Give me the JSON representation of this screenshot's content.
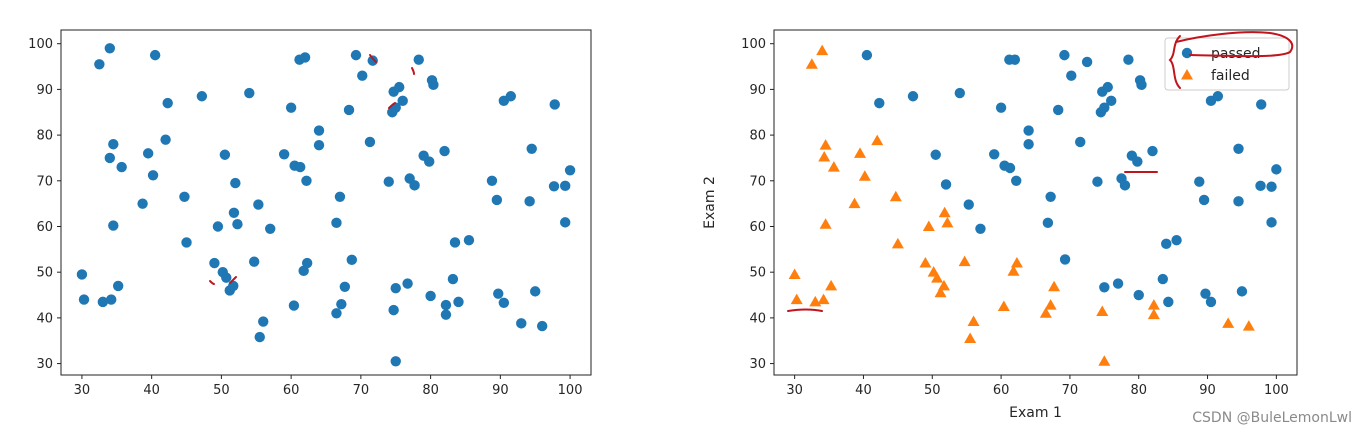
{
  "chart_data": [
    {
      "type": "scatter",
      "xlim": [
        27,
        103
      ],
      "ylim": [
        27.5,
        103
      ],
      "xticks": [
        30,
        40,
        50,
        60,
        70,
        80,
        90,
        100
      ],
      "yticks": [
        30,
        40,
        50,
        60,
        70,
        80,
        90,
        100
      ],
      "xlabel": "",
      "ylabel": "",
      "legend": null,
      "series": [
        {
          "color": "#1f77b4",
          "marker": "circle",
          "points": [
            [
              30,
              49.5
            ],
            [
              30.3,
              44
            ],
            [
              32.5,
              95.5
            ],
            [
              33,
              43.5
            ],
            [
              34,
              99
            ],
            [
              34,
              75
            ],
            [
              34.2,
              44
            ],
            [
              34.5,
              78
            ],
            [
              34.5,
              60.2
            ],
            [
              35.2,
              47
            ],
            [
              35.7,
              73
            ],
            [
              38.7,
              65
            ],
            [
              39.5,
              76
            ],
            [
              40.2,
              71.2
            ],
            [
              40.5,
              97.5
            ],
            [
              42,
              79
            ],
            [
              42.3,
              87
            ],
            [
              44.7,
              66.5
            ],
            [
              45,
              56.5
            ],
            [
              47.2,
              88.5
            ],
            [
              49,
              52
            ],
            [
              49.5,
              60
            ],
            [
              50.2,
              50
            ],
            [
              50.5,
              75.7
            ],
            [
              50.7,
              48.8
            ],
            [
              51.2,
              46
            ],
            [
              51.7,
              47
            ],
            [
              51.8,
              63
            ],
            [
              52,
              69.5
            ],
            [
              52.3,
              60.5
            ],
            [
              54,
              89.2
            ],
            [
              54.7,
              52.3
            ],
            [
              55.3,
              64.8
            ],
            [
              55.5,
              35.8
            ],
            [
              56,
              39.2
            ],
            [
              57,
              59.5
            ],
            [
              59,
              75.8
            ],
            [
              60,
              86
            ],
            [
              60.4,
              42.7
            ],
            [
              60.5,
              73.3
            ],
            [
              61.2,
              96.5
            ],
            [
              61.3,
              73
            ],
            [
              61.8,
              50.3
            ],
            [
              62,
              97
            ],
            [
              62.2,
              70
            ],
            [
              62.3,
              52
            ],
            [
              64,
              77.8
            ],
            [
              64,
              81
            ],
            [
              66.5,
              60.8
            ],
            [
              66.5,
              41
            ],
            [
              67,
              66.5
            ],
            [
              67.2,
              43
            ],
            [
              67.7,
              46.8
            ],
            [
              68.3,
              85.5
            ],
            [
              68.7,
              52.7
            ],
            [
              69.3,
              97.5
            ],
            [
              70.2,
              93
            ],
            [
              71.3,
              78.5
            ],
            [
              71.7,
              96.3
            ],
            [
              74,
              69.8
            ],
            [
              74.5,
              85
            ],
            [
              74.7,
              41.7
            ],
            [
              74.7,
              89.5
            ],
            [
              75,
              46.5
            ],
            [
              75,
              86
            ],
            [
              75,
              30.5
            ],
            [
              75.5,
              90.5
            ],
            [
              76,
              87.5
            ],
            [
              76.7,
              47.5
            ],
            [
              77,
              70.5
            ],
            [
              77.7,
              69
            ],
            [
              78.3,
              96.5
            ],
            [
              79,
              75.5
            ],
            [
              79.8,
              74.2
            ],
            [
              80,
              44.8
            ],
            [
              80.2,
              92
            ],
            [
              80.4,
              91
            ],
            [
              82,
              76.5
            ],
            [
              82.2,
              42.8
            ],
            [
              82.2,
              40.7
            ],
            [
              83.2,
              48.5
            ],
            [
              83.5,
              56.5
            ],
            [
              84,
              43.5
            ],
            [
              85.5,
              57
            ],
            [
              88.8,
              70
            ],
            [
              89.5,
              65.8
            ],
            [
              89.7,
              45.3
            ],
            [
              90.5,
              87.5
            ],
            [
              90.5,
              43.3
            ],
            [
              91.5,
              88.5
            ],
            [
              93,
              38.8
            ],
            [
              94.2,
              65.5
            ],
            [
              94.5,
              77
            ],
            [
              95,
              45.8
            ],
            [
              96,
              38.2
            ],
            [
              97.7,
              68.8
            ],
            [
              97.8,
              86.7
            ],
            [
              99.3,
              68.9
            ],
            [
              99.3,
              60.9
            ],
            [
              100,
              72.3
            ]
          ]
        }
      ]
    },
    {
      "type": "scatter",
      "xlim": [
        27,
        103
      ],
      "ylim": [
        27.5,
        103
      ],
      "xticks": [
        30,
        40,
        50,
        60,
        70,
        80,
        90,
        100
      ],
      "yticks": [
        30,
        40,
        50,
        60,
        70,
        80,
        90,
        100
      ],
      "xlabel": "Exam 1",
      "ylabel": "Exam 2",
      "legend": "top-right",
      "series": [
        {
          "name": "passed",
          "color": "#1f77b4",
          "marker": "circle",
          "points": [
            [
              40.5,
              97.5
            ],
            [
              42.3,
              87
            ],
            [
              47.2,
              88.5
            ],
            [
              50.5,
              75.7
            ],
            [
              52,
              69.2
            ],
            [
              54,
              89.2
            ],
            [
              55.3,
              64.8
            ],
            [
              57,
              59.5
            ],
            [
              59,
              75.8
            ],
            [
              60,
              86
            ],
            [
              60.5,
              73.3
            ],
            [
              61.2,
              96.5
            ],
            [
              61.3,
              72.8
            ],
            [
              62,
              96.5
            ],
            [
              62.2,
              70
            ],
            [
              64,
              81
            ],
            [
              64,
              78
            ],
            [
              66.8,
              60.8
            ],
            [
              67.2,
              66.5
            ],
            [
              68.3,
              85.5
            ],
            [
              69.2,
              97.5
            ],
            [
              69.3,
              52.8
            ],
            [
              70.2,
              93
            ],
            [
              71.5,
              78.5
            ],
            [
              72.5,
              96
            ],
            [
              74,
              69.8
            ],
            [
              74.5,
              85
            ],
            [
              74.7,
              89.5
            ],
            [
              75,
              46.7
            ],
            [
              75,
              86
            ],
            [
              75.5,
              90.5
            ],
            [
              76,
              87.5
            ],
            [
              77,
              47.5
            ],
            [
              77.5,
              70.5
            ],
            [
              78,
              69
            ],
            [
              78.5,
              96.5
            ],
            [
              79,
              75.5
            ],
            [
              79.8,
              74.2
            ],
            [
              80,
              45
            ],
            [
              80.2,
              92
            ],
            [
              80.4,
              91
            ],
            [
              82,
              76.5
            ],
            [
              83.5,
              48.5
            ],
            [
              84,
              56.2
            ],
            [
              84.3,
              43.5
            ],
            [
              85.5,
              57
            ],
            [
              88.8,
              69.8
            ],
            [
              89.5,
              65.8
            ],
            [
              89.7,
              45.3
            ],
            [
              90.5,
              87.5
            ],
            [
              90.5,
              43.5
            ],
            [
              91.5,
              88.5
            ],
            [
              94.5,
              77
            ],
            [
              94.5,
              65.5
            ],
            [
              95,
              45.8
            ],
            [
              97.7,
              68.9
            ],
            [
              97.8,
              86.7
            ],
            [
              99.3,
              68.7
            ],
            [
              99.3,
              60.9
            ],
            [
              100,
              72.5
            ]
          ]
        },
        {
          "name": "failed",
          "color": "#ff7f0e",
          "marker": "triangle",
          "points": [
            [
              30,
              49.5
            ],
            [
              30.3,
              44
            ],
            [
              32.5,
              95.5
            ],
            [
              33,
              43.5
            ],
            [
              34,
              98.5
            ],
            [
              34.2,
              44
            ],
            [
              34.3,
              75.2
            ],
            [
              34.5,
              77.8
            ],
            [
              34.5,
              60.5
            ],
            [
              35.3,
              47
            ],
            [
              35.7,
              73
            ],
            [
              38.7,
              65
            ],
            [
              39.5,
              76
            ],
            [
              40.2,
              71
            ],
            [
              42,
              78.8
            ],
            [
              44.7,
              66.5
            ],
            [
              45,
              56.2
            ],
            [
              49,
              52
            ],
            [
              49.5,
              60
            ],
            [
              50.2,
              50
            ],
            [
              50.7,
              48.7
            ],
            [
              51.2,
              45.5
            ],
            [
              51.7,
              47
            ],
            [
              51.8,
              63
            ],
            [
              52.2,
              60.8
            ],
            [
              54.7,
              52.3
            ],
            [
              55.5,
              35.5
            ],
            [
              56,
              39.2
            ],
            [
              60.4,
              42.5
            ],
            [
              61.8,
              50.2
            ],
            [
              62.3,
              52
            ],
            [
              66.5,
              41
            ],
            [
              67.2,
              42.8
            ],
            [
              67.7,
              46.8
            ],
            [
              74.7,
              41.4
            ],
            [
              75,
              30.5
            ],
            [
              82.2,
              42.8
            ],
            [
              82.2,
              40.7
            ],
            [
              93,
              38.8
            ],
            [
              96,
              38.2
            ]
          ]
        }
      ]
    }
  ],
  "annotation": {
    "watermark": "CSDN @BuleLemonLwl",
    "ink_color": "#c0151d"
  }
}
